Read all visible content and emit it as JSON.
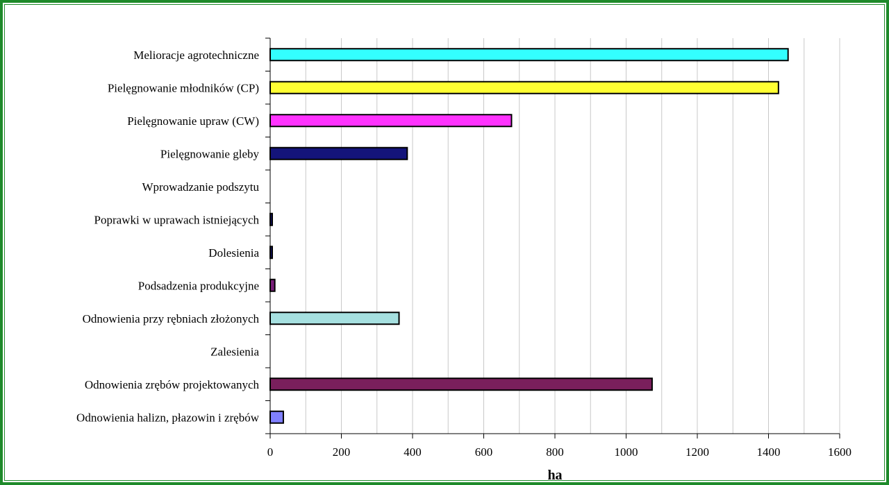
{
  "chart_data": {
    "type": "bar",
    "orientation": "horizontal",
    "categories": [
      "Melioracje agrotechniczne",
      "Pielęgnowanie młodników (CP)",
      "Pielęgnowanie upraw (CW)",
      "Pielęgnowanie gleby",
      "Wprowadzanie podszytu",
      "Poprawki w uprawach istniejących",
      "Dolesienia",
      "Podsadzenia produkcyjne",
      "Odnowienia przy rębniach złożonych",
      "Zalesienia",
      "Odnowienia zrębów projektowanych",
      "Odnowienia halizn, płazowin i zrębów"
    ],
    "values": [
      1455,
      1428,
      678,
      385,
      0,
      5,
      3,
      13,
      362,
      0,
      1073,
      37
    ],
    "colors": [
      "#33ffff",
      "#ffff33",
      "#ff33ff",
      "#14147a",
      "#ffffff",
      "#14147a",
      "#14147a",
      "#7a1f7a",
      "#a6e0e0",
      "#ffffff",
      "#7a1f5c",
      "#8080ff"
    ],
    "xlabel": "ha",
    "ylabel": "",
    "title": "",
    "xlim": [
      0,
      1600
    ],
    "xticks": [
      0,
      200,
      400,
      600,
      800,
      1000,
      1200,
      1400,
      1600
    ],
    "grid": "vertical"
  }
}
